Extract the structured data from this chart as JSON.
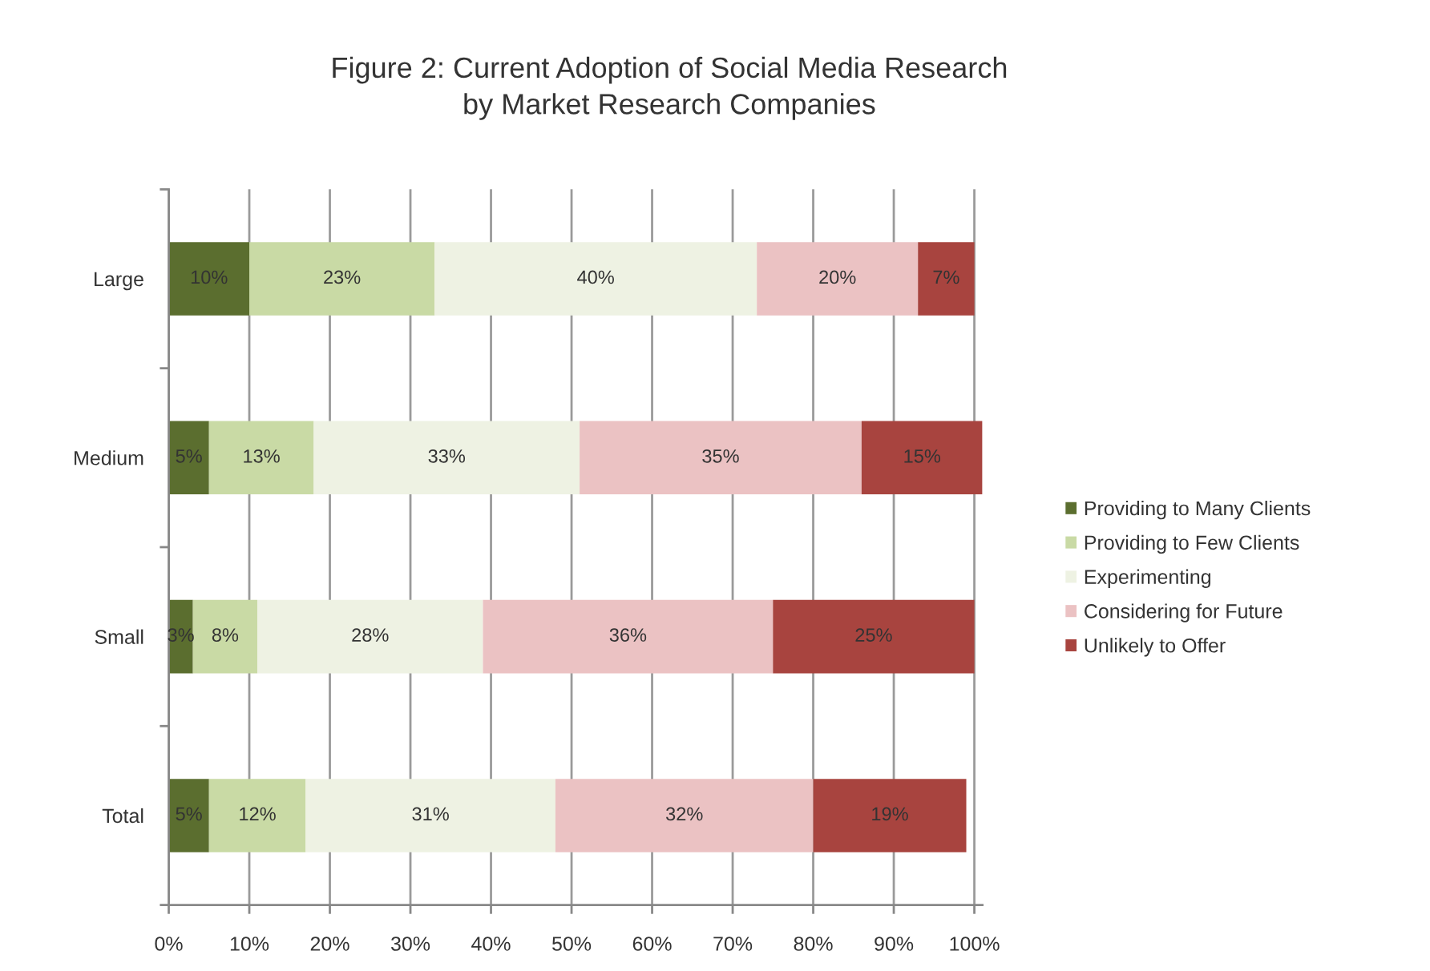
{
  "chart_data": {
    "type": "bar",
    "orientation": "horizontal",
    "stacked": true,
    "title": "Figure 2: Current Adoption of Social Media Research\nby Market Research Companies",
    "categories": [
      "Large",
      "Medium",
      "Small",
      "Total"
    ],
    "series": [
      {
        "name": "Providing to Many Clients",
        "color": "#5b6e2f",
        "values": [
          10,
          5,
          3,
          5
        ],
        "value_labels": [
          "10%",
          "5%",
          "3%",
          "5%"
        ]
      },
      {
        "name": "Providing to Few Clients",
        "color": "#c9daa5",
        "values": [
          23,
          13,
          8,
          12
        ],
        "value_labels": [
          "23%",
          "13%",
          "8%",
          "12%"
        ]
      },
      {
        "name": "Experimenting",
        "color": "#eef2e3",
        "values": [
          40,
          33,
          28,
          31
        ],
        "value_labels": [
          "40%",
          "33%",
          "28%",
          "31%"
        ]
      },
      {
        "name": "Considering for Future",
        "color": "#ebc2c3",
        "values": [
          20,
          35,
          36,
          32
        ],
        "value_labels": [
          "20%",
          "35%",
          "36%",
          "32%"
        ]
      },
      {
        "name": "Unlikely to Offer",
        "color": "#a8443f",
        "values": [
          7,
          15,
          25,
          19
        ],
        "value_labels": [
          "7%",
          "15%",
          "25%",
          "19%"
        ]
      }
    ],
    "xlim": [
      0,
      101
    ],
    "xticks": [
      {
        "value": 0,
        "label": "0%"
      },
      {
        "value": 10,
        "label": "10%"
      },
      {
        "value": 20,
        "label": "20%"
      },
      {
        "value": 30,
        "label": "30%"
      },
      {
        "value": 40,
        "label": "40%"
      },
      {
        "value": 50,
        "label": "50%"
      },
      {
        "value": 60,
        "label": "60%"
      },
      {
        "value": 70,
        "label": "70%"
      },
      {
        "value": 80,
        "label": "80%"
      },
      {
        "value": 90,
        "label": "90%"
      },
      {
        "value": 100,
        "label": "100%"
      }
    ],
    "grid": "x",
    "legend": "right"
  }
}
